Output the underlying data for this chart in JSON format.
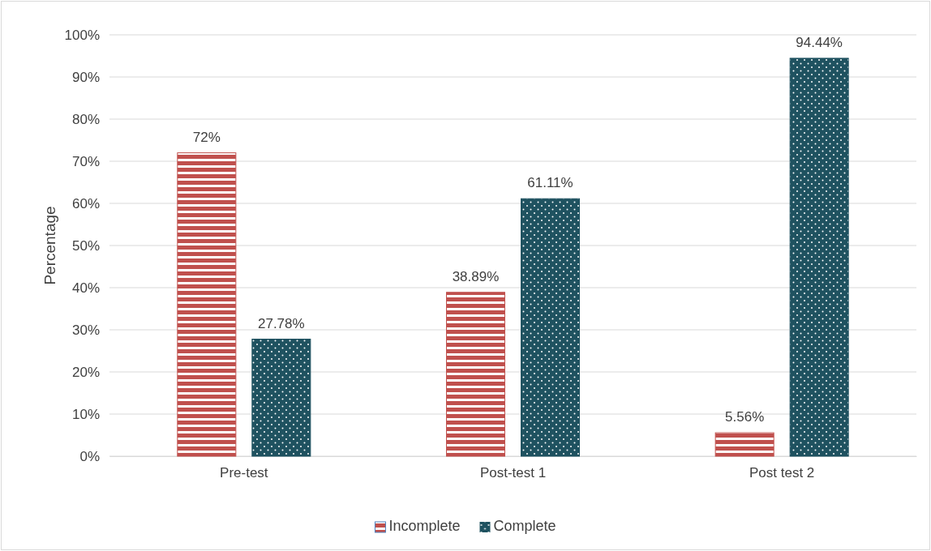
{
  "chart_data": {
    "type": "bar",
    "ylabel": "Percentage",
    "categories": [
      "Pre-test",
      "Post-test 1",
      "Post test 2"
    ],
    "series": [
      {
        "name": "Incomplete",
        "color": "#c0504d",
        "values": [
          72,
          38.89,
          5.56
        ],
        "value_labels": [
          "72%",
          "38.89%",
          "5.56%"
        ]
      },
      {
        "name": "Complete",
        "color": "#1f5260",
        "values": [
          27.78,
          61.11,
          94.44
        ],
        "value_labels": [
          "27.78%",
          "61.11%",
          "94.44%"
        ]
      }
    ],
    "ylim": [
      0,
      100
    ],
    "yticks": [
      {
        "value": 0,
        "label": "0%"
      },
      {
        "value": 10,
        "label": "10%"
      },
      {
        "value": 20,
        "label": "20%"
      },
      {
        "value": 30,
        "label": "30%"
      },
      {
        "value": 40,
        "label": "40%"
      },
      {
        "value": 50,
        "label": "50%"
      },
      {
        "value": 60,
        "label": "60%"
      },
      {
        "value": 70,
        "label": "70%"
      },
      {
        "value": 80,
        "label": "80%"
      },
      {
        "value": 90,
        "label": "90%"
      },
      {
        "value": 100,
        "label": "100%"
      }
    ],
    "grid": "y",
    "legend": "bottom"
  }
}
